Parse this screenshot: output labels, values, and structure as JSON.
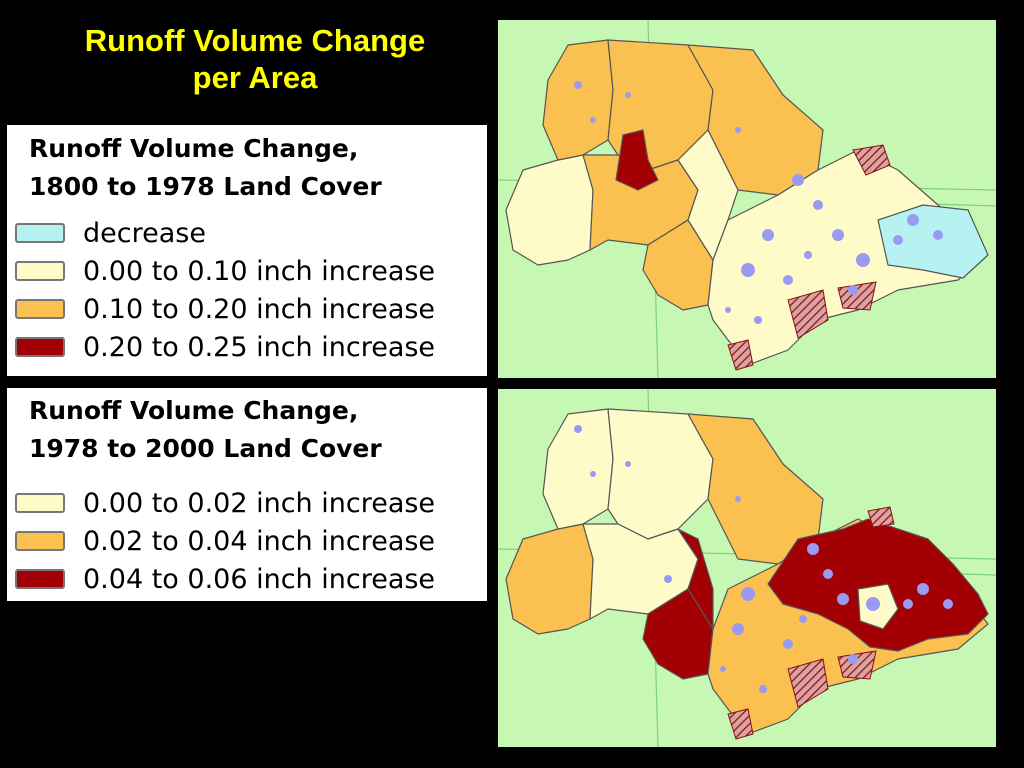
{
  "title": {
    "line1": "Runoff Volume Change",
    "line2": "per Area"
  },
  "colors": {
    "background": "#000000",
    "title": "#ffff00",
    "map_background": "#c6f8b4",
    "decrease": "#b7f2f2",
    "low": "#fefbc8",
    "mid": "#fbc150",
    "high": "#a30006",
    "water": "#9a9af2"
  },
  "legends": [
    {
      "title_line1": "Runoff Volume Change,",
      "title_line2": "1800 to 1978 Land Cover",
      "items": [
        {
          "label": "decrease",
          "color": "#b7f2f2"
        },
        {
          "label": "0.00 to 0.10 inch increase",
          "color": "#fefbc8"
        },
        {
          "label": "0.10 to 0.20 inch increase",
          "color": "#fbc150"
        },
        {
          "label": "0.20 to 0.25 inch increase",
          "color": "#a30006"
        }
      ]
    },
    {
      "title_line1": "Runoff Volume Change,",
      "title_line2": "1978 to 2000 Land Cover",
      "items": [
        {
          "label": "0.00 to 0.02 inch increase",
          "color": "#fefbc8"
        },
        {
          "label": "0.02 to 0.04 inch increase",
          "color": "#fbc150"
        },
        {
          "label": "0.04 to 0.06 inch increase",
          "color": "#a30006"
        }
      ]
    }
  ]
}
